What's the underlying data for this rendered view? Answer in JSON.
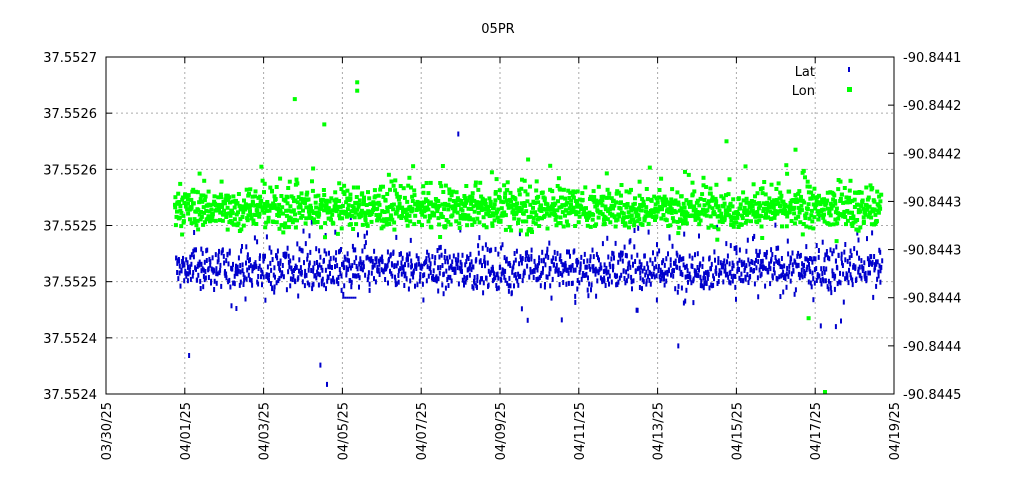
{
  "chart_data": {
    "type": "scatter",
    "title": "05PR",
    "xlabel": "",
    "ylabel": "",
    "y2label": "",
    "grid": true,
    "legend_position": "top-right",
    "x_range": [
      "2025-03-30",
      "2025-04-19"
    ],
    "x_ticks": [
      "03/30/25",
      "04/01/25",
      "04/03/25",
      "04/05/25",
      "04/07/25",
      "04/09/25",
      "04/11/25",
      "04/13/25",
      "04/15/25",
      "04/17/25",
      "04/19/25"
    ],
    "y_left": {
      "range": [
        37.55235,
        37.5527
      ],
      "tick_labels": [
        "37.5524",
        "37.5524",
        "37.5525",
        "37.5525",
        "37.5526",
        "37.5526",
        "37.5527"
      ]
    },
    "y_right": {
      "range": [
        -90.8445,
        -90.8441
      ],
      "tick_labels": [
        "-90.8445",
        "-90.8444",
        "-90.8444",
        "-90.8443",
        "-90.8443",
        "-90.8442",
        "-90.8442",
        "-90.8441"
      ]
    },
    "series": [
      {
        "name": "Lat",
        "axis": "left",
        "color": "#0000cc",
        "marker": "small-vertical-tick",
        "data_start": "2025-03-31T18:00",
        "data_end": "2025-04-18T16:00",
        "typical_value": 37.55248,
        "typical_spread": 2e-05,
        "outliers": [
          {
            "t": "2025-04-01T02:00",
            "v": 37.55239
          },
          {
            "t": "2025-04-04T10:00",
            "v": 37.55238
          },
          {
            "t": "2025-04-04T14:00",
            "v": 37.55236
          },
          {
            "t": "2025-04-07T22:00",
            "v": 37.55262
          },
          {
            "t": "2025-04-13T12:00",
            "v": 37.5524
          },
          {
            "t": "2025-04-17T12:00",
            "v": 37.55242
          }
        ],
        "flat_segments": [
          {
            "start": "2025-04-05T00:00",
            "end": "2025-04-05T08:00",
            "v": 37.55245
          }
        ]
      },
      {
        "name": "Lon",
        "axis": "right",
        "color": "#00ff00",
        "marker": "square",
        "data_start": "2025-03-31T18:00",
        "data_end": "2025-04-18T16:00",
        "typical_value": -90.84428,
        "typical_spread": 2.2e-05,
        "outliers": [
          {
            "t": "2025-04-03T19:00",
            "v": -90.84415
          },
          {
            "t": "2025-04-05T09:00",
            "v": -90.84413
          },
          {
            "t": "2025-04-05T09:00",
            "v": -90.84414
          },
          {
            "t": "2025-04-04T13:00",
            "v": -90.84418
          },
          {
            "t": "2025-04-14T18:00",
            "v": -90.8442
          },
          {
            "t": "2025-04-16T12:00",
            "v": -90.84421
          },
          {
            "t": "2025-04-16T20:00",
            "v": -90.84441
          },
          {
            "t": "2025-04-17T06:00",
            "v": -90.84452
          }
        ]
      }
    ]
  }
}
